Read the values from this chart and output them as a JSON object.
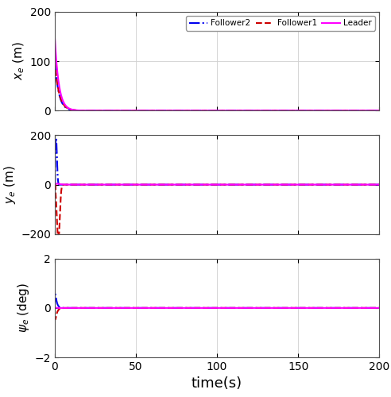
{
  "xlabel": "time(s)",
  "ylabel1": "$x_e$ (m)",
  "ylabel2": "$y_e$ (m)",
  "ylabel3": "$\\psi_e$ (deg)",
  "xlim": [
    0,
    200
  ],
  "ylim1": [
    0,
    200
  ],
  "ylim2": [
    -200,
    200
  ],
  "ylim3": [
    -2,
    2
  ],
  "xticks": [
    0,
    50,
    100,
    150,
    200
  ],
  "yticks1": [
    0,
    100,
    200
  ],
  "yticks2": [
    -200,
    0,
    200
  ],
  "yticks3": [
    -2,
    0,
    2
  ],
  "leader_color": "#FF00FF",
  "follower1_color": "#CC0000",
  "follower2_color": "#0000EE",
  "leader_style": "-",
  "follower1_style": "--",
  "follower2_style": "-.",
  "leader_label": "Leader",
  "follower1_label": "Follower1",
  "follower2_label": "Follower2",
  "linewidth": 1.5,
  "grid_color": "#d0d0d0",
  "ax_face_color": "#ffffff",
  "fig_face_color": "#ffffff",
  "tick_fontsize": 10,
  "label_fontsize": 11,
  "xlabel_fontsize": 13
}
